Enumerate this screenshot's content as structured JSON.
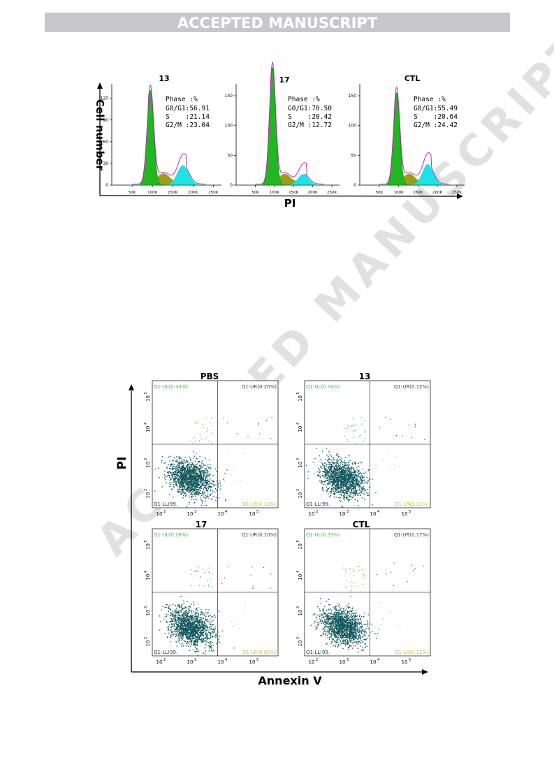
{
  "banner": {
    "text": "ACCEPTED MANUSCRIPT"
  },
  "watermark": {
    "text": "ACCEPTED MANUSCRIPT"
  },
  "colors": {
    "g0g1": "#22b622",
    "s": "#a09a20",
    "g2m": "#22e0e8",
    "fit": "#b030b0",
    "dot": "#12585e",
    "ul": "#3fbf3f",
    "ur": "#6a2a6a",
    "lr": "#c8c040"
  },
  "chart_data": [
    {
      "type": "area",
      "figure": "cell-cycle-histograms",
      "xlabel": "PI",
      "ylabel": "Cell number",
      "panels": [
        {
          "title": "13",
          "yticks": [
            "0",
            "30",
            "60",
            "90",
            "120"
          ],
          "ymax": 140,
          "phase_header": "Phase :%",
          "phase_lines": [
            "G0/G1:56.91",
            "S    :21.14",
            "G2/M :23.04"
          ],
          "phases": {
            "G0/G1": 56.91,
            "S": 21.14,
            "G2/M": 23.04
          }
        },
        {
          "title": "17",
          "yticks": [
            "0",
            "50",
            "100",
            "150"
          ],
          "ymax": 170,
          "phase_header": "Phase :%",
          "phase_lines": [
            "G0/G1:70.50",
            "S    :20.42",
            "G2/M :12.72"
          ],
          "phases": {
            "G0/G1": 70.5,
            "S": 20.42,
            "G2/M": 12.72
          }
        },
        {
          "title": "CTL",
          "yticks": [
            "0",
            "50",
            "100",
            "150"
          ],
          "ymax": 170,
          "phase_header": "Phase :%",
          "phase_lines": [
            "G0/G1:55.49",
            "S    :20.64",
            "G2/M :24.42"
          ],
          "phases": {
            "G0/G1": 55.49,
            "S": 20.64,
            "G2/M": 24.42
          }
        }
      ],
      "xticks": [
        "50K",
        "100K",
        "150K",
        "200K",
        "250K"
      ],
      "xrange": [
        0,
        270000
      ]
    },
    {
      "type": "scatter",
      "figure": "annexin-v-pi-flow",
      "xlabel": "Annexin V",
      "ylabel": "PI",
      "ticks": [
        "2",
        "3",
        "4",
        "5"
      ],
      "panels": [
        {
          "title": "PBS",
          "UL": "Q1-UL(0.43%)",
          "UR": "Q1-UR(0.20%)",
          "LL": "Q1-LL(99.",
          "LR": "Q1-LR(0.10%)"
        },
        {
          "title": "13",
          "UL": "Q1-UL(0.34%)",
          "UR": "Q1-UR(0.12%)",
          "LL": "Q1-LL(99.",
          "LR": "Q1-LR(0.11%)"
        },
        {
          "title": "17",
          "UL": "Q1-UL(0.28%)",
          "UR": "Q1-UR(0.10%)",
          "LL": "Q1-LL(99.",
          "LR": "Q1-LR(0.05%)"
        },
        {
          "title": "CTL",
          "UL": "Q1-UL(0.33%)",
          "UR": "Q1-UR(0.17%)",
          "LL": "Q1-LL(99.",
          "LR": "Q1-LR(0.12%)"
        }
      ]
    }
  ]
}
